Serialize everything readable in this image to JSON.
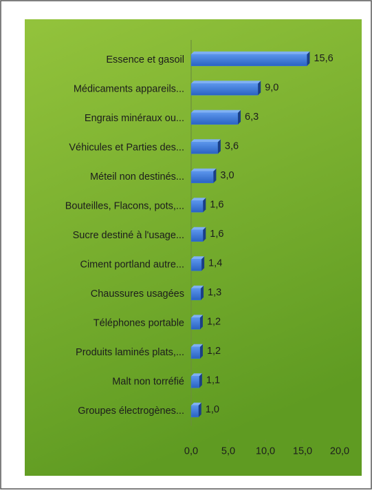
{
  "chart_data": {
    "type": "hbar",
    "categories": [
      "Essence et gasoil",
      "Médicaments appareils...",
      "Engrais minéraux ou...",
      "Véhicules et Parties des...",
      "Méteil non destinés...",
      "Bouteilles, Flacons, pots,...",
      "Sucre destiné à l'usage...",
      "Ciment portland autre...",
      "Chaussures usagées",
      "Téléphones  portable",
      "Produits laminés plats,...",
      "Malt non torréfié",
      "Groupes électrogènes..."
    ],
    "values": [
      15.6,
      9.0,
      6.3,
      3.6,
      3.0,
      1.6,
      1.6,
      1.4,
      1.3,
      1.2,
      1.2,
      1.1,
      1.0
    ],
    "value_labels": [
      "15,6",
      "9,0",
      "6,3",
      "3,6",
      "3,0",
      "1,6",
      "1,6",
      "1,4",
      "1,3",
      "1,2",
      "1,2",
      "1,1",
      "1,0"
    ],
    "color": "#3a78d8",
    "xlim": [
      0,
      20
    ],
    "xticks": [
      {
        "value": 0,
        "label": "0,0"
      },
      {
        "value": 5,
        "label": "5,0"
      },
      {
        "value": 10,
        "label": "10,0"
      },
      {
        "value": 15,
        "label": "15,0"
      },
      {
        "value": 20,
        "label": "20,0"
      }
    ],
    "grid": false
  }
}
